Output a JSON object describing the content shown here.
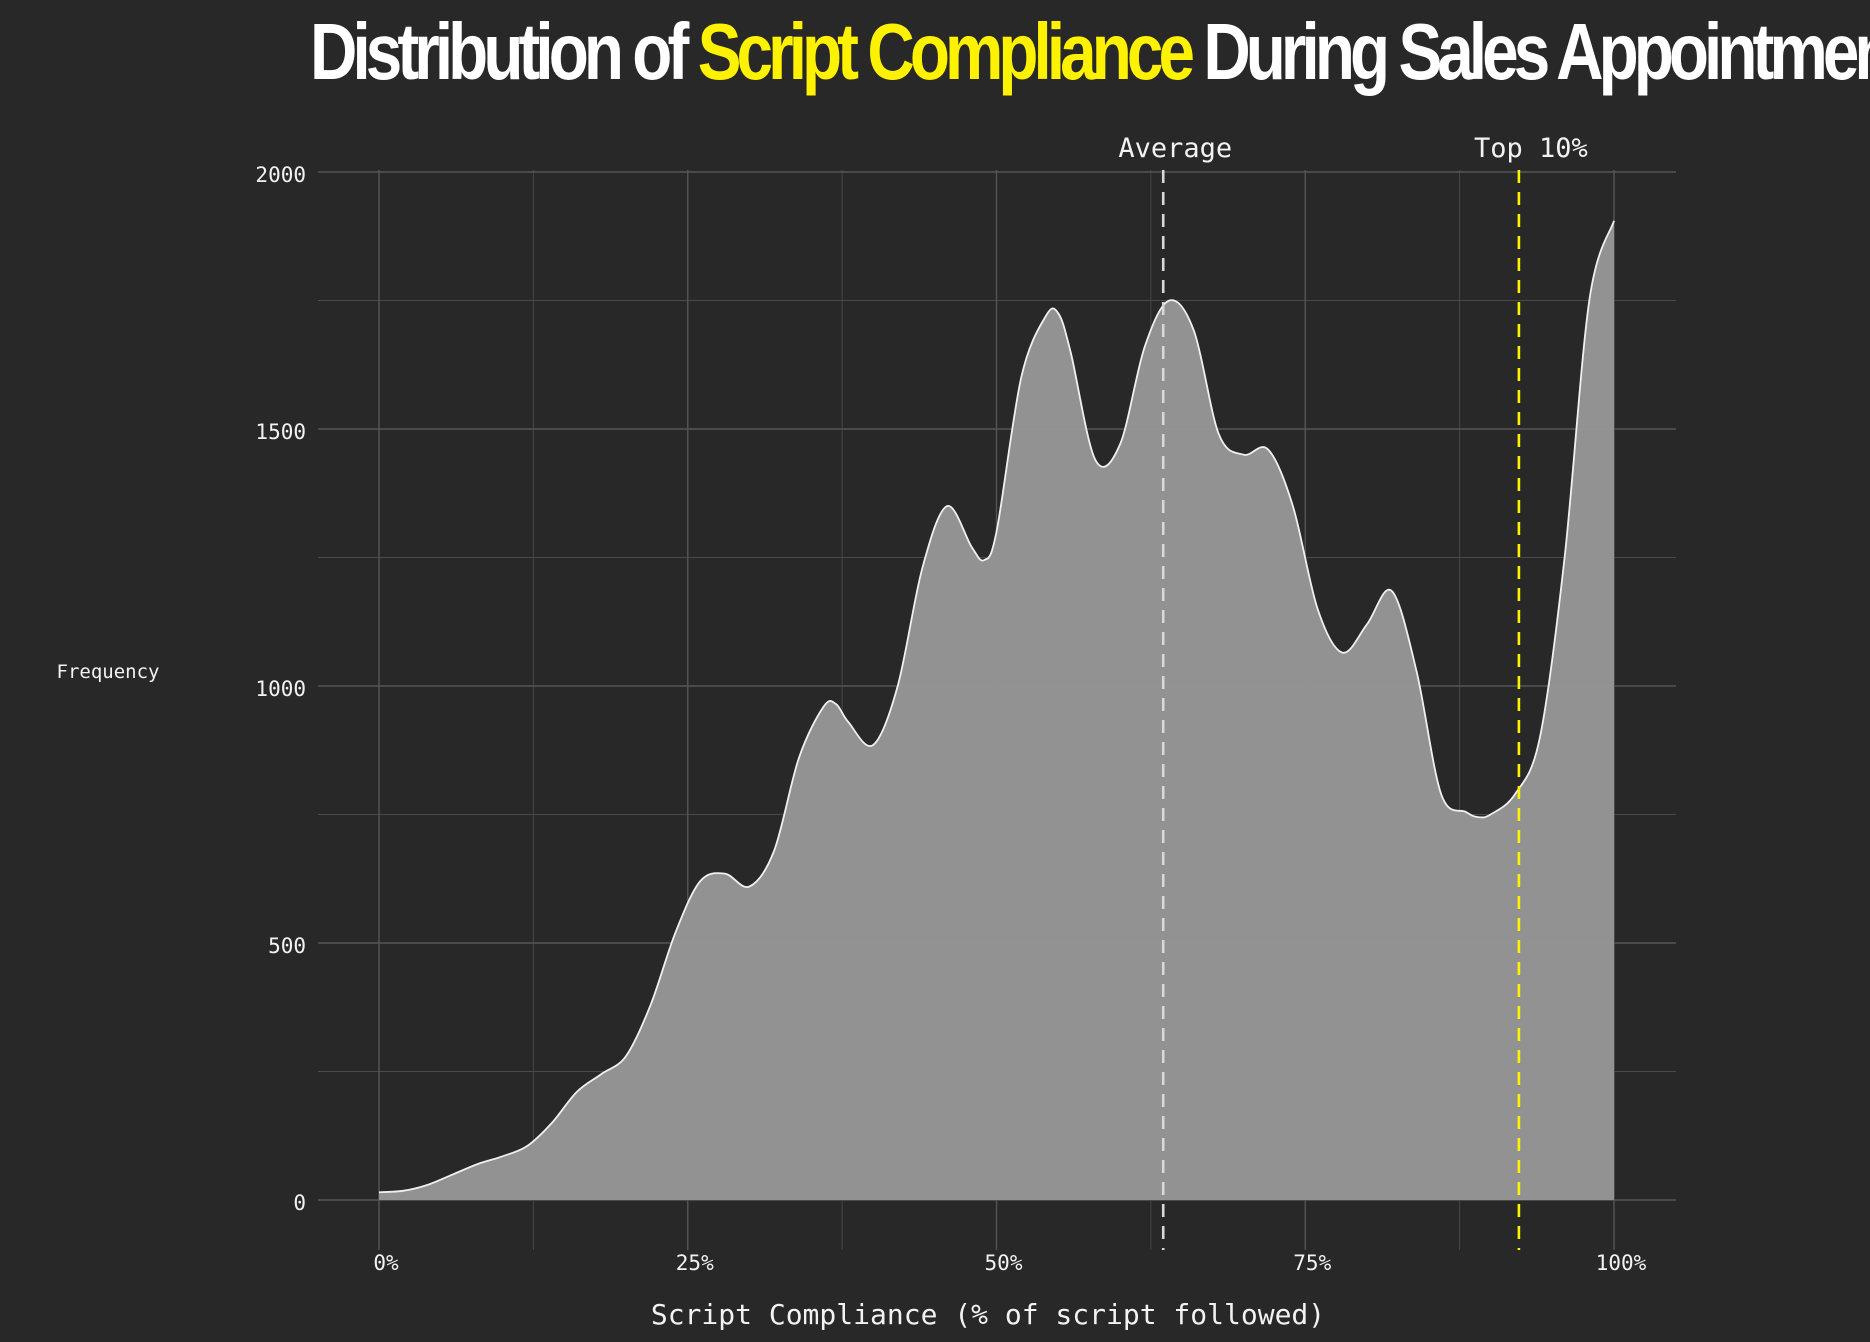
{
  "title": {
    "before": "Distribution of ",
    "highlight": "Script Compliance",
    "after": " During Sales Appointments"
  },
  "colors": {
    "background": "#282828",
    "highlight": "#fff200",
    "area_fill": "#969696",
    "area_stroke": "#f0f0f0",
    "grid": "#555555",
    "average_line": "#d8d8d8",
    "top10_line": "#fff200"
  },
  "chart_data": {
    "type": "area",
    "title": "Distribution of Script Compliance During Sales Appointments",
    "xlabel": "Script Compliance (% of script followed)",
    "ylabel": "Frequency",
    "xlim": [
      0,
      100
    ],
    "ylim": [
      0,
      2000
    ],
    "x_ticks": [
      0,
      25,
      50,
      75,
      100
    ],
    "x_tick_labels": [
      "0%",
      "25%",
      "50%",
      "75%",
      "100%"
    ],
    "y_ticks": [
      0,
      500,
      1000,
      1500,
      2000
    ],
    "y_tick_labels": [
      "0",
      "500",
      "1000",
      "1500",
      "2000"
    ],
    "grid": true,
    "x": [
      0,
      2,
      4,
      6,
      8,
      10,
      12,
      14,
      16,
      18,
      20,
      22,
      24,
      26,
      28,
      30,
      32,
      34,
      36,
      37,
      38,
      40,
      42,
      44,
      46,
      48,
      49,
      50,
      52,
      54,
      55,
      56,
      58,
      60,
      62,
      64,
      66,
      68,
      70,
      72,
      74,
      76,
      78,
      80,
      82,
      84,
      86,
      88,
      89,
      90,
      92,
      94,
      96,
      98,
      100
    ],
    "y": [
      15,
      18,
      30,
      50,
      70,
      85,
      105,
      150,
      210,
      245,
      280,
      380,
      520,
      620,
      635,
      610,
      680,
      860,
      960,
      965,
      930,
      885,
      1000,
      1230,
      1350,
      1270,
      1245,
      1300,
      1600,
      1720,
      1725,
      1650,
      1440,
      1470,
      1660,
      1750,
      1690,
      1490,
      1450,
      1460,
      1350,
      1150,
      1065,
      1120,
      1185,
      1030,
      790,
      755,
      745,
      750,
      790,
      900,
      1250,
      1750,
      1905
    ],
    "reference_lines": [
      {
        "label": "Average",
        "x": 63.5,
        "color": "#d8d8d8"
      },
      {
        "label": "Top 10%",
        "x": 92.3,
        "color": "#fff200"
      }
    ]
  }
}
